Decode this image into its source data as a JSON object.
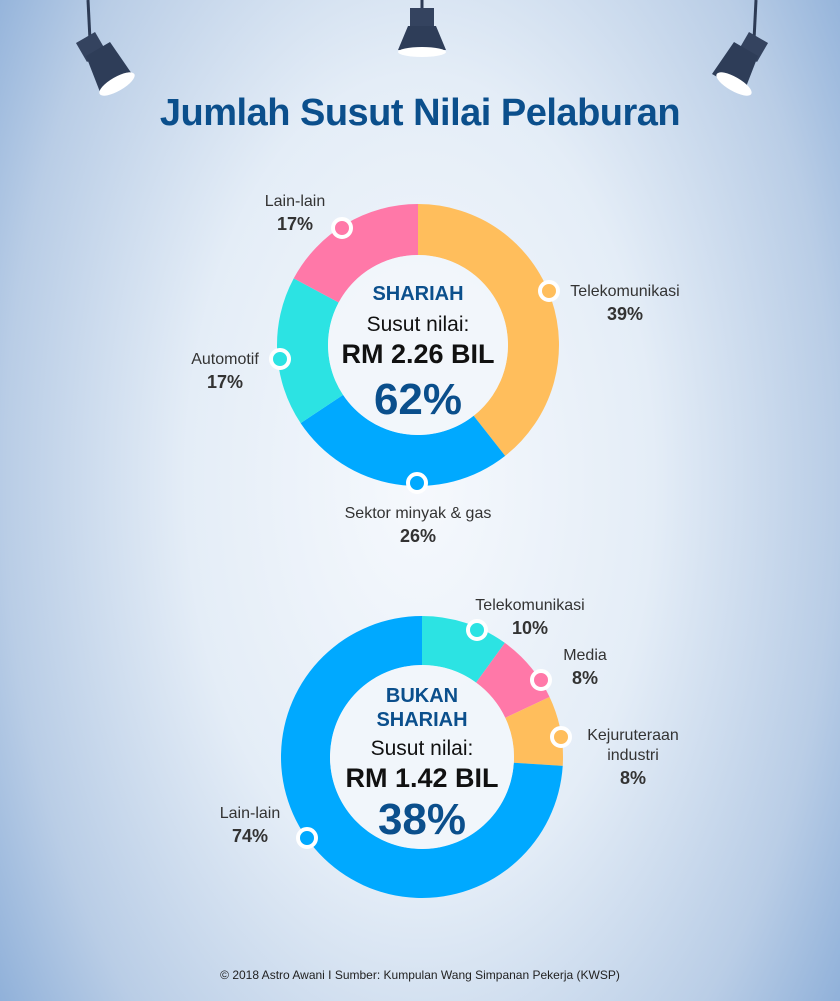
{
  "title": "Jumlah Susut Nilai Pelaburan",
  "footer": "© 2018 Astro Awani  I Sumber: Kumpulan Wang Simpanan Pekerja (KWSP)",
  "colors": {
    "title": "#0b4f8c",
    "orange": "#ffbe5c",
    "blue": "#00a9ff",
    "cyan": "#2ce3e3",
    "pink": "#ff78a8"
  },
  "chart_data": [
    {
      "type": "pie",
      "variant": "donut",
      "title": "SHARIAH",
      "center": {
        "subtitle": "Susut nilai:",
        "amount": "RM 2.26 BIL",
        "percent": "62%"
      },
      "categories": [
        "Telekomunikasi",
        "Sektor minyak & gas",
        "Automotif",
        "Lain-lain"
      ],
      "values": [
        39,
        26,
        17,
        17
      ],
      "labels": [
        "39%",
        "26%",
        "17%",
        "17%"
      ],
      "colors": [
        "#ffbe5c",
        "#00a9ff",
        "#2ce3e3",
        "#ff78a8"
      ]
    },
    {
      "type": "pie",
      "variant": "donut",
      "title": "BUKAN SHARIAH",
      "title_lines": [
        "BUKAN",
        "SHARIAH"
      ],
      "center": {
        "subtitle": "Susut nilai:",
        "amount": "RM 1.42 BIL",
        "percent": "38%"
      },
      "categories": [
        "Telekomunikasi",
        "Media",
        "Kejuruteraan industri",
        "Lain-lain"
      ],
      "category_lines": [
        [
          "Telekomunikasi"
        ],
        [
          "Media"
        ],
        [
          "Kejuruteraan",
          "industri"
        ],
        [
          "Lain-lain"
        ]
      ],
      "values": [
        10,
        8,
        8,
        74
      ],
      "labels": [
        "10%",
        "8%",
        "8%",
        "74%"
      ],
      "colors": [
        "#2ce3e3",
        "#ff78a8",
        "#ffbe5c",
        "#00a9ff"
      ]
    }
  ]
}
